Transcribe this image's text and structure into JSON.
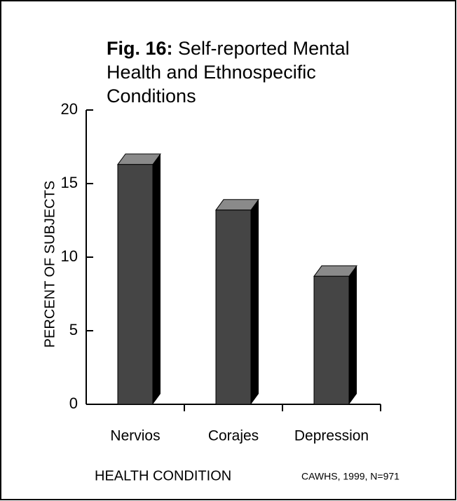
{
  "chart_data": {
    "type": "bar",
    "figure_label": "Fig. 16:",
    "title": "Self-reported Mental Health and Ethnospecific Conditions",
    "categories": [
      "Nervios",
      "Corajes",
      "Depression"
    ],
    "values": [
      16.3,
      13.2,
      8.7
    ],
    "color": "#454545",
    "ylim": [
      0,
      20
    ],
    "yticks": [
      0,
      5,
      10,
      15,
      20
    ],
    "x_label": "HEALTH CONDITION",
    "y_label": "PERCENT OF SUBJECTS",
    "source": "CAWHS, 1999, N=971"
  }
}
